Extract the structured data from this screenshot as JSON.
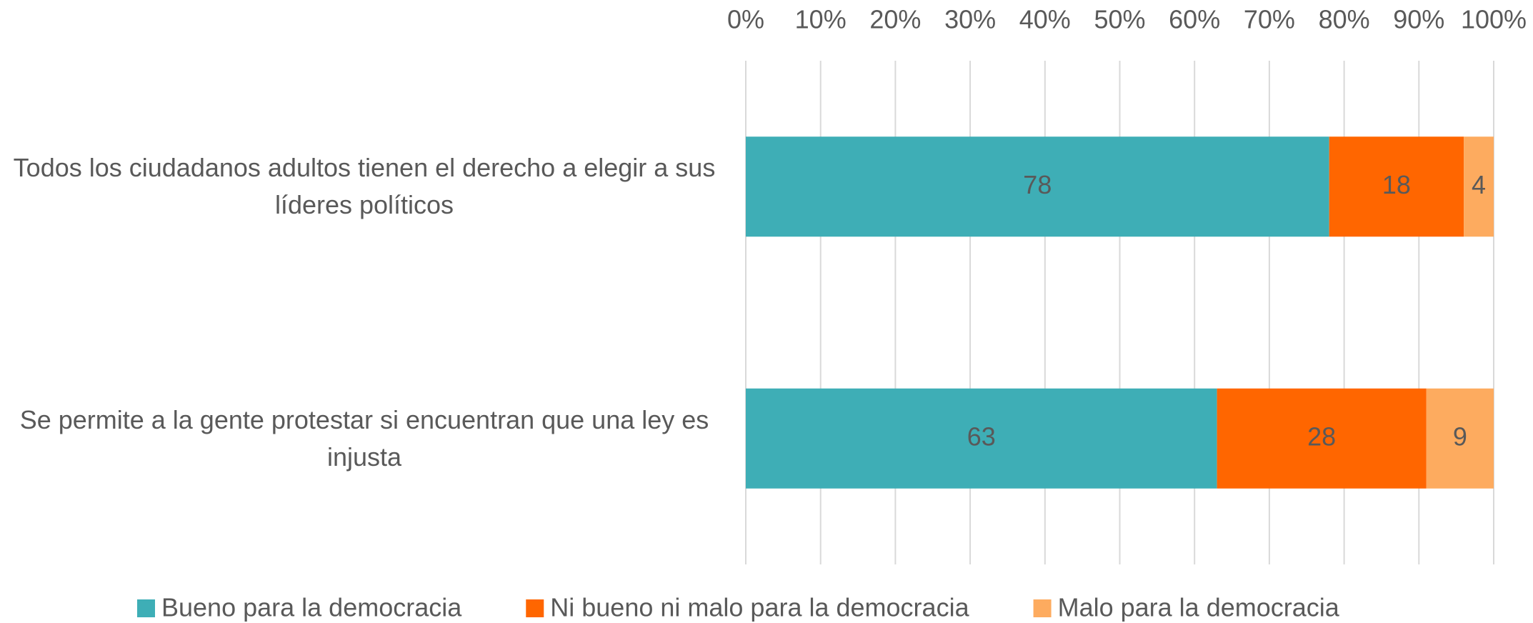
{
  "chart_data": {
    "type": "stacked_barh",
    "categories": [
      "Todos los ciudadanos adultos tienen el derecho a elegir a sus líderes políticos",
      "Se permite a la gente protestar si encuentran que una ley es injusta"
    ],
    "series": [
      {
        "name": "Bueno para la democracia",
        "color": "#3eaeb6",
        "values": [
          78,
          63
        ]
      },
      {
        "name": "Ni bueno ni malo para la democracia",
        "color": "#ff6600",
        "values": [
          18,
          28
        ]
      },
      {
        "name": "Malo para la democracia",
        "color": "#fdab5f",
        "values": [
          4,
          9
        ]
      }
    ],
    "xlim": [
      0,
      100
    ],
    "xticks": [
      {
        "value": 0,
        "label": "0%"
      },
      {
        "value": 10,
        "label": "10%"
      },
      {
        "value": 20,
        "label": "20%"
      },
      {
        "value": 30,
        "label": "30%"
      },
      {
        "value": 40,
        "label": "40%"
      },
      {
        "value": 50,
        "label": "50%"
      },
      {
        "value": 60,
        "label": "60%"
      },
      {
        "value": 70,
        "label": "70%"
      },
      {
        "value": 80,
        "label": "80%"
      },
      {
        "value": 90,
        "label": "90%"
      },
      {
        "value": 100,
        "label": "100%"
      }
    ],
    "grid": true,
    "legend": "bottom"
  }
}
